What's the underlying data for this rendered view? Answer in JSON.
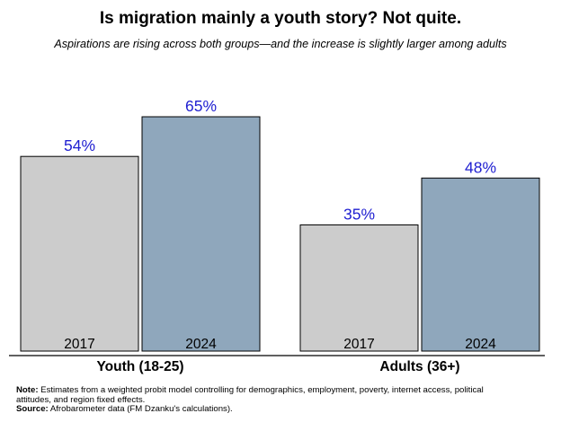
{
  "chart_data": {
    "type": "bar",
    "title": "Is migration mainly a youth story? Not quite.",
    "subtitle": "Aspirations are rising across both groups—and the increase is slightly larger among adults",
    "categories": [
      "Youth (18-25)",
      "Adults (36+)"
    ],
    "series": [
      {
        "name": "2017",
        "values": [
          54,
          35
        ],
        "labels": [
          "54%",
          "35%"
        ]
      },
      {
        "name": "2024",
        "values": [
          65,
          48
        ],
        "labels": [
          "65%",
          "48%"
        ]
      }
    ],
    "ylim": [
      0,
      70
    ],
    "colors": {
      "2017": "#cccccc",
      "2024": "#8fa7bc",
      "value_label": "#1f1fd1",
      "axis": "#000000"
    }
  },
  "footnote": {
    "note_label": "Note:",
    "note_text": " Estimates from a weighted probit model controlling for demographics, employment, poverty, internet access, political attitudes, and region fixed effects.",
    "source_label": "Source:",
    "source_text": " Afrobarometer data (FM Dzanku's calculations)."
  }
}
